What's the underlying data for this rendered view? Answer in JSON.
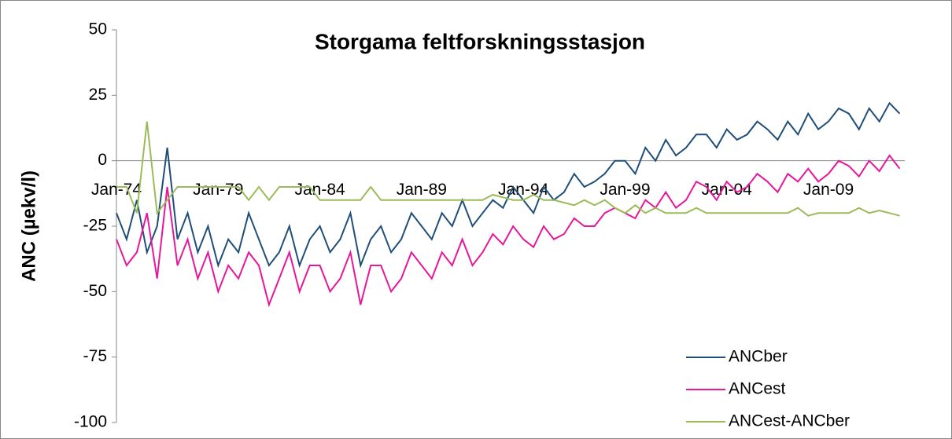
{
  "chart_data": {
    "type": "line",
    "title": "Storgama feltforskningsstasjon",
    "y_label": "ANC (µekv/l)",
    "categories": [
      "Jan-74",
      null,
      null,
      null,
      null,
      null,
      null,
      null,
      null,
      null,
      "Jan-79",
      null,
      null,
      null,
      null,
      null,
      null,
      null,
      null,
      null,
      "Jan-84",
      null,
      null,
      null,
      null,
      null,
      null,
      null,
      null,
      null,
      "Jan-89",
      null,
      null,
      null,
      null,
      null,
      null,
      null,
      null,
      null,
      "Jan-94",
      null,
      null,
      null,
      null,
      null,
      null,
      null,
      null,
      null,
      "Jan-99",
      null,
      null,
      null,
      null,
      null,
      null,
      null,
      null,
      null,
      "Jan-04",
      null,
      null,
      null,
      null,
      null,
      null,
      null,
      null,
      null,
      "Jan-09",
      null,
      null,
      null,
      null,
      null,
      null,
      null
    ],
    "series": [
      {
        "name": "ANCber",
        "color": "#1f4e79",
        "values": [
          -20,
          -30,
          -15,
          -35,
          -25,
          5,
          -30,
          -20,
          -35,
          -25,
          -40,
          -30,
          -35,
          -20,
          -30,
          -40,
          -35,
          -25,
          -40,
          -30,
          -25,
          -35,
          -30,
          -20,
          -40,
          -30,
          -25,
          -35,
          -30,
          -20,
          -25,
          -30,
          -20,
          -25,
          -15,
          -25,
          -20,
          -15,
          -18,
          -10,
          -15,
          -20,
          -10,
          -15,
          -12,
          -5,
          -10,
          -8,
          -5,
          0,
          0,
          -5,
          5,
          0,
          8,
          2,
          5,
          10,
          10,
          5,
          12,
          8,
          10,
          15,
          12,
          8,
          15,
          10,
          18,
          12,
          15,
          20,
          18,
          12,
          20,
          15,
          22,
          18
        ]
      },
      {
        "name": "ANCest",
        "color": "#e6179b",
        "values": [
          -30,
          -40,
          -35,
          -20,
          -45,
          -10,
          -40,
          -30,
          -45,
          -35,
          -50,
          -40,
          -45,
          -35,
          -40,
          -55,
          -45,
          -35,
          -50,
          -40,
          -40,
          -50,
          -45,
          -35,
          -55,
          -40,
          -40,
          -50,
          -45,
          -35,
          -40,
          -45,
          -35,
          -40,
          -30,
          -40,
          -35,
          -28,
          -32,
          -25,
          -30,
          -33,
          -25,
          -30,
          -28,
          -22,
          -25,
          -25,
          -20,
          -18,
          -20,
          -22,
          -15,
          -18,
          -12,
          -18,
          -15,
          -8,
          -10,
          -15,
          -8,
          -12,
          -10,
          -5,
          -8,
          -12,
          -5,
          -8,
          -3,
          -8,
          -5,
          0,
          -2,
          -6,
          0,
          -4,
          2,
          -3
        ]
      },
      {
        "name": "ANCest-ANCber",
        "color": "#9bbb59",
        "values": [
          -10,
          -10,
          -20,
          15,
          -20,
          -15,
          -10,
          -10,
          -10,
          -10,
          -10,
          -10,
          -10,
          -15,
          -10,
          -15,
          -10,
          -10,
          -10,
          -10,
          -15,
          -15,
          -15,
          -15,
          -15,
          -10,
          -15,
          -15,
          -15,
          -15,
          -15,
          -15,
          -15,
          -15,
          -15,
          -15,
          -15,
          -13,
          -14,
          -15,
          -15,
          -13,
          -15,
          -15,
          -16,
          -17,
          -15,
          -17,
          -15,
          -18,
          -20,
          -17,
          -20,
          -18,
          -20,
          -20,
          -20,
          -18,
          -20,
          -20,
          -20,
          -20,
          -20,
          -20,
          -20,
          -20,
          -20,
          -18,
          -21,
          -20,
          -20,
          -20,
          -20,
          -18,
          -20,
          -19,
          -20,
          -21
        ]
      }
    ],
    "ylim": [
      -100,
      50
    ],
    "yticks": [
      -100,
      -75,
      -50,
      -25,
      0,
      25,
      50
    ],
    "legend": "bottom-right"
  }
}
